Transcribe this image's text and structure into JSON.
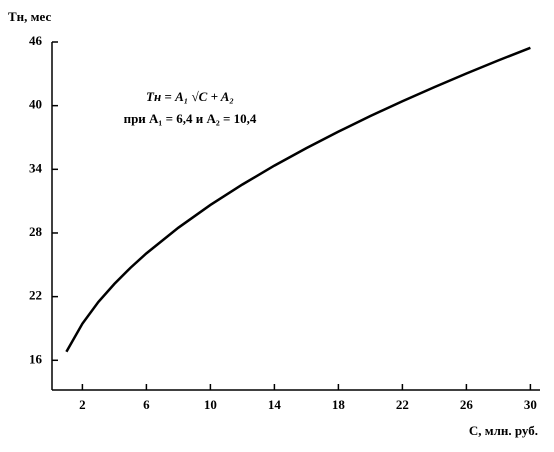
{
  "chart_data": {
    "type": "line",
    "y_label": "Tн, мес",
    "x_label": "C, млн. руб.",
    "annotation": [
      "Tн = A₁ √C + A₂",
      "при A₁ = 6,4 и A₂ = 10,4"
    ],
    "x": [
      1,
      2,
      3,
      4,
      5,
      6,
      8,
      10,
      12,
      14,
      16,
      18,
      20,
      22,
      24,
      26,
      28,
      30
    ],
    "series": [
      {
        "color": "#000000",
        "values": [
          16.8,
          19.45,
          21.5,
          23.2,
          24.71,
          26.08,
          28.5,
          30.64,
          32.57,
          34.35,
          36.0,
          37.55,
          39.02,
          40.42,
          41.75,
          43.03,
          44.27,
          45.45
        ]
      }
    ],
    "xlim": [
      0.1,
      30.6
    ],
    "xticks": [
      2,
      6,
      10,
      14,
      18,
      22,
      26,
      30
    ],
    "ylim": [
      13.2,
      46
    ],
    "yticks": [
      16,
      22,
      28,
      34,
      40,
      46
    ],
    "grid": false
  }
}
